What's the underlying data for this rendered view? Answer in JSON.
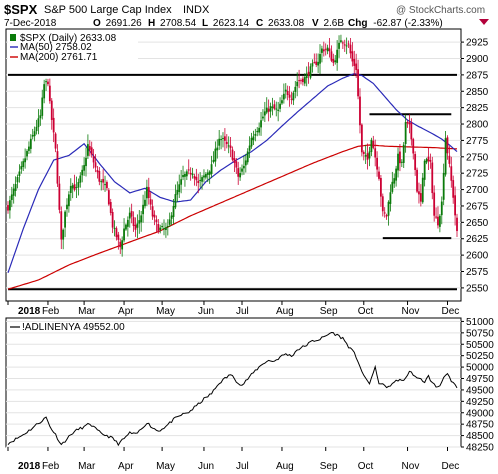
{
  "header": {
    "symbol": "$SPX",
    "name": "S&P 500 Large Cap Index",
    "exchange": "INDX",
    "watermark": "@ StockCharts.com",
    "date": "7-Dec-2018",
    "ohlc": [
      {
        "label": "O",
        "value": "2691.26"
      },
      {
        "label": "H",
        "value": "2708.54"
      },
      {
        "label": "L",
        "value": "2623.14"
      },
      {
        "label": "C",
        "value": "2633.08"
      },
      {
        "label": "V",
        "value": "2.6B"
      }
    ],
    "chg_label": "Chg",
    "chg_value": "-62.87 (-2.33%)",
    "down_arrow_color": "#b3003b"
  },
  "colors": {
    "up": "#0a7a0a",
    "down": "#cc0033",
    "ma50": "#2a2ab8",
    "ma200": "#cc0000",
    "breadth": "#000000",
    "level_line": "#000000"
  },
  "chart_data": [
    {
      "type": "candlestick",
      "title": "$SPX (Daily) 2633.08",
      "legend": [
        {
          "name": "MA(50) 2758.02",
          "color": "#2a2ab8"
        },
        {
          "name": "MA(200) 2761.71",
          "color": "#cc0000"
        }
      ],
      "legend_placement": "top-left",
      "ylim": [
        2530,
        2945
      ],
      "yticks": [
        2550,
        2575,
        2600,
        2625,
        2650,
        2675,
        2700,
        2725,
        2750,
        2775,
        2800,
        2825,
        2850,
        2875,
        2900,
        2925
      ],
      "xlim": [
        0,
        236
      ],
      "xtick_labels": [
        {
          "label": "2018",
          "x": 0,
          "bold": true
        },
        {
          "label": "Feb",
          "x": 21
        },
        {
          "label": "Mar",
          "x": 40
        },
        {
          "label": "Apr",
          "x": 61
        },
        {
          "label": "May",
          "x": 81
        },
        {
          "label": "Jun",
          "x": 103
        },
        {
          "label": "Jul",
          "x": 123
        },
        {
          "label": "Aug",
          "x": 144
        },
        {
          "label": "Sep",
          "x": 167
        },
        {
          "label": "Oct",
          "x": 187
        },
        {
          "label": "Nov",
          "x": 210
        },
        {
          "label": "Dec",
          "x": 231
        }
      ],
      "horizontal_levels": [
        {
          "value": 2875,
          "from": 0,
          "to": 236
        },
        {
          "value": 2548,
          "from": 0,
          "to": 236
        },
        {
          "value": 2815,
          "from": 190,
          "to": 233
        },
        {
          "value": 2626,
          "from": 197,
          "to": 233
        }
      ],
      "anchors": [
        [
          0,
          2673
        ],
        [
          2,
          2690
        ],
        [
          8,
          2740
        ],
        [
          14,
          2790
        ],
        [
          17,
          2812
        ],
        [
          19,
          2860
        ],
        [
          21,
          2865
        ],
        [
          22,
          2830
        ],
        [
          25,
          2760
        ],
        [
          28,
          2620
        ],
        [
          30,
          2665
        ],
        [
          33,
          2710
        ],
        [
          36,
          2700
        ],
        [
          40,
          2735
        ],
        [
          42,
          2768
        ],
        [
          45,
          2742
        ],
        [
          48,
          2715
        ],
        [
          52,
          2700
        ],
        [
          55,
          2645
        ],
        [
          59,
          2612
        ],
        [
          61,
          2640
        ],
        [
          64,
          2662
        ],
        [
          67,
          2638
        ],
        [
          70,
          2662
        ],
        [
          73,
          2700
        ],
        [
          76,
          2660
        ],
        [
          79,
          2640
        ],
        [
          84,
          2640
        ],
        [
          88,
          2690
        ],
        [
          92,
          2720
        ],
        [
          97,
          2728
        ],
        [
          100,
          2708
        ],
        [
          103,
          2720
        ],
        [
          107,
          2735
        ],
        [
          111,
          2780
        ],
        [
          113,
          2775
        ],
        [
          117,
          2760
        ],
        [
          121,
          2720
        ],
        [
          124,
          2735
        ],
        [
          128,
          2780
        ],
        [
          132,
          2798
        ],
        [
          135,
          2818
        ],
        [
          138,
          2825
        ],
        [
          142,
          2820
        ],
        [
          146,
          2850
        ],
        [
          149,
          2842
        ],
        [
          152,
          2865
        ],
        [
          156,
          2870
        ],
        [
          160,
          2888
        ],
        [
          163,
          2897
        ],
        [
          165,
          2914
        ],
        [
          168,
          2915
        ],
        [
          171,
          2893
        ],
        [
          173,
          2910
        ],
        [
          175,
          2930
        ],
        [
          177,
          2925
        ],
        [
          179,
          2920
        ],
        [
          181,
          2895
        ],
        [
          183,
          2885
        ],
        [
          186,
          2755
        ],
        [
          189,
          2745
        ],
        [
          191,
          2780
        ],
        [
          193,
          2750
        ],
        [
          195,
          2720
        ],
        [
          197,
          2663
        ],
        [
          199,
          2660
        ],
        [
          201,
          2700
        ],
        [
          203,
          2720
        ],
        [
          205,
          2750
        ],
        [
          207,
          2738
        ],
        [
          209,
          2800
        ],
        [
          211,
          2795
        ],
        [
          213,
          2760
        ],
        [
          215,
          2700
        ],
        [
          217,
          2680
        ],
        [
          219,
          2748
        ],
        [
          222,
          2738
        ],
        [
          224,
          2660
        ],
        [
          226,
          2650
        ],
        [
          228,
          2680
        ],
        [
          230,
          2780
        ],
        [
          232,
          2735
        ],
        [
          234,
          2690
        ],
        [
          236,
          2633
        ]
      ],
      "ma50_anchors": [
        [
          0,
          2573
        ],
        [
          8,
          2640
        ],
        [
          16,
          2700
        ],
        [
          24,
          2745
        ],
        [
          32,
          2752
        ],
        [
          40,
          2770
        ],
        [
          48,
          2740
        ],
        [
          56,
          2712
        ],
        [
          64,
          2695
        ],
        [
          72,
          2702
        ],
        [
          80,
          2688
        ],
        [
          88,
          2681
        ],
        [
          96,
          2684
        ],
        [
          104,
          2712
        ],
        [
          112,
          2730
        ],
        [
          120,
          2745
        ],
        [
          128,
          2758
        ],
        [
          136,
          2775
        ],
        [
          144,
          2797
        ],
        [
          152,
          2818
        ],
        [
          160,
          2838
        ],
        [
          168,
          2858
        ],
        [
          176,
          2870
        ],
        [
          182,
          2877
        ],
        [
          186,
          2874
        ],
        [
          192,
          2862
        ],
        [
          198,
          2842
        ],
        [
          204,
          2822
        ],
        [
          210,
          2806
        ],
        [
          216,
          2796
        ],
        [
          222,
          2787
        ],
        [
          228,
          2777
        ],
        [
          232,
          2768
        ],
        [
          236,
          2758
        ]
      ],
      "ma200_anchors": [
        [
          0,
          2548
        ],
        [
          16,
          2562
        ],
        [
          32,
          2585
        ],
        [
          48,
          2603
        ],
        [
          64,
          2620
        ],
        [
          80,
          2637
        ],
        [
          96,
          2660
        ],
        [
          112,
          2680
        ],
        [
          128,
          2700
        ],
        [
          144,
          2720
        ],
        [
          160,
          2740
        ],
        [
          176,
          2758
        ],
        [
          184,
          2766
        ],
        [
          190,
          2768
        ],
        [
          200,
          2766
        ],
        [
          212,
          2765
        ],
        [
          224,
          2764
        ],
        [
          236,
          2762
        ]
      ]
    },
    {
      "type": "line",
      "title": "!ADLINENYA 49552.00",
      "ylim": [
        48250,
        51075
      ],
      "yticks": [
        48250,
        48500,
        48750,
        49000,
        49250,
        49500,
        49750,
        50000,
        50250,
        50500,
        50750,
        51000
      ],
      "xlim": [
        0,
        236
      ],
      "xtick_labels": [
        {
          "label": "2018",
          "x": 0,
          "bold": true
        },
        {
          "label": "Feb",
          "x": 21
        },
        {
          "label": "Mar",
          "x": 40
        },
        {
          "label": "Apr",
          "x": 61
        },
        {
          "label": "May",
          "x": 81
        },
        {
          "label": "Jun",
          "x": 103
        },
        {
          "label": "Jul",
          "x": 123
        },
        {
          "label": "Aug",
          "x": 144
        },
        {
          "label": "Sep",
          "x": 167
        },
        {
          "label": "Oct",
          "x": 187
        },
        {
          "label": "Nov",
          "x": 210
        },
        {
          "label": "Dec",
          "x": 231
        }
      ],
      "anchors": [
        [
          0,
          48330
        ],
        [
          4,
          48420
        ],
        [
          8,
          48520
        ],
        [
          12,
          48640
        ],
        [
          15,
          48740
        ],
        [
          18,
          48830
        ],
        [
          20,
          48900
        ],
        [
          22,
          48700
        ],
        [
          25,
          48520
        ],
        [
          28,
          48300
        ],
        [
          31,
          48430
        ],
        [
          34,
          48560
        ],
        [
          37,
          48640
        ],
        [
          40,
          48690
        ],
        [
          43,
          48760
        ],
        [
          46,
          48650
        ],
        [
          49,
          48540
        ],
        [
          52,
          48500
        ],
        [
          55,
          48440
        ],
        [
          58,
          48320
        ],
        [
          61,
          48430
        ],
        [
          64,
          48560
        ],
        [
          67,
          48520
        ],
        [
          70,
          48640
        ],
        [
          73,
          48790
        ],
        [
          76,
          48670
        ],
        [
          79,
          48600
        ],
        [
          83,
          48700
        ],
        [
          87,
          48850
        ],
        [
          91,
          48950
        ],
        [
          95,
          49010
        ],
        [
          99,
          49150
        ],
        [
          103,
          49300
        ],
        [
          107,
          49420
        ],
        [
          111,
          49650
        ],
        [
          114,
          49750
        ],
        [
          117,
          49840
        ],
        [
          120,
          49700
        ],
        [
          123,
          49600
        ],
        [
          126,
          49740
        ],
        [
          130,
          49920
        ],
        [
          134,
          50080
        ],
        [
          137,
          50140
        ],
        [
          140,
          50130
        ],
        [
          143,
          50220
        ],
        [
          146,
          50290
        ],
        [
          149,
          50240
        ],
        [
          152,
          50380
        ],
        [
          156,
          50460
        ],
        [
          160,
          50570
        ],
        [
          164,
          50610
        ],
        [
          167,
          50680
        ],
        [
          170,
          50760
        ],
        [
          173,
          50700
        ],
        [
          176,
          50630
        ],
        [
          179,
          50450
        ],
        [
          182,
          50300
        ],
        [
          184,
          50130
        ],
        [
          187,
          49790
        ],
        [
          190,
          49650
        ],
        [
          193,
          49980
        ],
        [
          195,
          49660
        ],
        [
          198,
          49580
        ],
        [
          201,
          49570
        ],
        [
          204,
          49720
        ],
        [
          207,
          49700
        ],
        [
          209,
          49760
        ],
        [
          211,
          49900
        ],
        [
          213,
          49850
        ],
        [
          215,
          49740
        ],
        [
          217,
          49730
        ],
        [
          219,
          49680
        ],
        [
          221,
          49800
        ],
        [
          223,
          49650
        ],
        [
          225,
          49570
        ],
        [
          227,
          49590
        ],
        [
          229,
          49800
        ],
        [
          231,
          49840
        ],
        [
          233,
          49680
        ],
        [
          236,
          49552
        ]
      ]
    }
  ]
}
